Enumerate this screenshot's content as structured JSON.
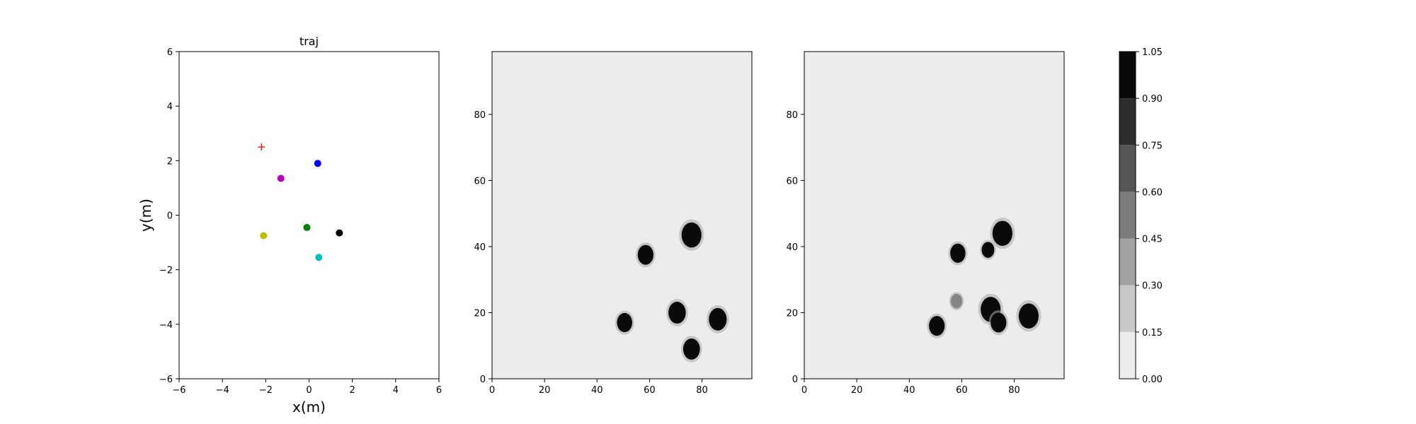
{
  "chart_data": [
    {
      "type": "scatter",
      "title": "traj",
      "xlabel": "x(m)",
      "ylabel": "y(m)",
      "xlim": [
        -6,
        6
      ],
      "ylim": [
        -6,
        6
      ],
      "xticks": [
        "−6",
        "−4",
        "−2",
        "0",
        "2",
        "4",
        "6"
      ],
      "yticks": [
        "−6",
        "−4",
        "−2",
        "0",
        "2",
        "4",
        "6"
      ],
      "grid": false,
      "points": [
        {
          "x": 0.4,
          "y": 1.9,
          "color": "#0000ff",
          "marker": "circle"
        },
        {
          "x": -1.3,
          "y": 1.35,
          "color": "#bf00bf",
          "marker": "circle"
        },
        {
          "x": -0.1,
          "y": -0.45,
          "color": "#008000",
          "marker": "circle"
        },
        {
          "x": 1.4,
          "y": -0.65,
          "color": "#000000",
          "marker": "circle"
        },
        {
          "x": -2.1,
          "y": -0.75,
          "color": "#bfbf00",
          "marker": "circle"
        },
        {
          "x": 0.45,
          "y": -1.55,
          "color": "#00bfbf",
          "marker": "circle"
        },
        {
          "x": -2.2,
          "y": 2.5,
          "color": "#ff0000",
          "marker": "plus"
        }
      ]
    },
    {
      "type": "heatmap",
      "title": "",
      "xlim": [
        0,
        99
      ],
      "ylim": [
        0,
        99
      ],
      "xticks": [
        "0",
        "20",
        "40",
        "60",
        "80"
      ],
      "yticks": [
        "0",
        "20",
        "40",
        "60",
        "80"
      ],
      "background": "#ececec",
      "blobs": [
        {
          "x": 76,
          "y": 43.5,
          "r": 3.8
        },
        {
          "x": 58.5,
          "y": 37.5,
          "r": 3.0
        },
        {
          "x": 50.5,
          "y": 17,
          "r": 2.9
        },
        {
          "x": 70.5,
          "y": 20,
          "r": 3.3
        },
        {
          "x": 86,
          "y": 18,
          "r": 3.4
        },
        {
          "x": 76,
          "y": 9,
          "r": 3.2
        }
      ]
    },
    {
      "type": "heatmap",
      "title": "",
      "xlim": [
        0,
        99
      ],
      "ylim": [
        0,
        99
      ],
      "xticks": [
        "0",
        "20",
        "40",
        "60",
        "80"
      ],
      "yticks": [
        "0",
        "20",
        "40",
        "60",
        "80"
      ],
      "background": "#ececec",
      "blobs": [
        {
          "x": 75.5,
          "y": 44,
          "r": 3.8
        },
        {
          "x": 58.5,
          "y": 38,
          "r": 2.9
        },
        {
          "x": 70,
          "y": 39,
          "r": 2.4
        },
        {
          "x": 50.5,
          "y": 16,
          "r": 3.0
        },
        {
          "x": 58,
          "y": 23.5,
          "r": 2.2,
          "level": 0.45
        },
        {
          "x": 71,
          "y": 21,
          "r": 3.8
        },
        {
          "x": 74,
          "y": 17,
          "r": 3.0
        },
        {
          "x": 85.5,
          "y": 19,
          "r": 3.8
        }
      ]
    },
    {
      "type": "colorbar",
      "range": [
        0.0,
        1.05
      ],
      "levels": [
        {
          "from": 0.0,
          "to": 0.15,
          "color": "#ececec"
        },
        {
          "from": 0.15,
          "to": 0.3,
          "color": "#c8c8c8"
        },
        {
          "from": 0.3,
          "to": 0.45,
          "color": "#a2a2a2"
        },
        {
          "from": 0.45,
          "to": 0.6,
          "color": "#7b7b7b"
        },
        {
          "from": 0.6,
          "to": 0.75,
          "color": "#555555"
        },
        {
          "from": 0.75,
          "to": 0.9,
          "color": "#2d2d2d"
        },
        {
          "from": 0.9,
          "to": 1.05,
          "color": "#0a0a0a"
        }
      ],
      "ticks": [
        "0.00",
        "0.15",
        "0.30",
        "0.45",
        "0.60",
        "0.75",
        "0.90",
        "1.05"
      ]
    }
  ]
}
